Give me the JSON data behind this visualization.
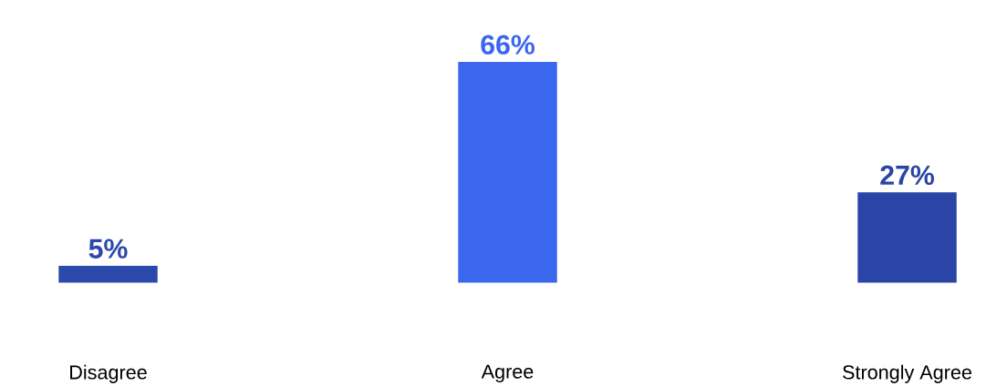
{
  "chart_data": {
    "type": "bar",
    "categories": [
      "Disagree",
      "Agree",
      "Strongly Agree"
    ],
    "values": [
      5,
      66,
      27
    ],
    "colors": [
      "#2b48ab",
      "#3b66ee",
      "#2a45a6"
    ],
    "value_labels": [
      "5%",
      "66%",
      "27%"
    ]
  }
}
